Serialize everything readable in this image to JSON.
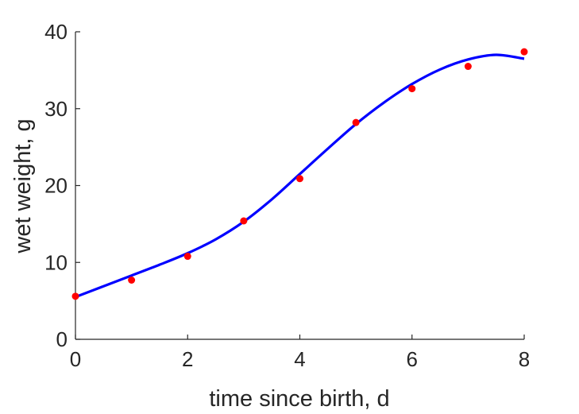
{
  "chart_data": {
    "type": "scatter",
    "title": "",
    "xlabel": "time since birth, d",
    "ylabel": "wet weight, g",
    "xlim": [
      0,
      8
    ],
    "ylim": [
      0,
      40
    ],
    "xticks": [
      0,
      2,
      4,
      6,
      8
    ],
    "yticks": [
      0,
      10,
      20,
      30,
      40
    ],
    "xtick_labels": [
      "0",
      "2",
      "4",
      "6",
      "8"
    ],
    "ytick_labels": [
      "0",
      "10",
      "20",
      "30",
      "40"
    ],
    "grid": false,
    "series": [
      {
        "type": "scatter",
        "color": "#ff0000",
        "x": [
          0,
          1,
          2,
          3,
          4,
          5,
          6,
          7,
          8
        ],
        "y": [
          5.6,
          7.7,
          10.8,
          15.4,
          20.9,
          28.2,
          32.6,
          35.5,
          37.4
        ]
      },
      {
        "type": "line",
        "color": "#0000ff",
        "x": [
          0,
          0.5,
          1,
          1.5,
          2,
          2.5,
          3,
          3.5,
          4,
          4.5,
          5,
          5.5,
          6,
          6.5,
          7,
          7.5,
          8
        ],
        "y": [
          5.5,
          6.9,
          8.3,
          9.7,
          11.2,
          13.0,
          15.3,
          18.2,
          21.5,
          24.8,
          28.0,
          30.8,
          33.2,
          35.1,
          36.4,
          37.0,
          36.5
        ]
      }
    ]
  }
}
